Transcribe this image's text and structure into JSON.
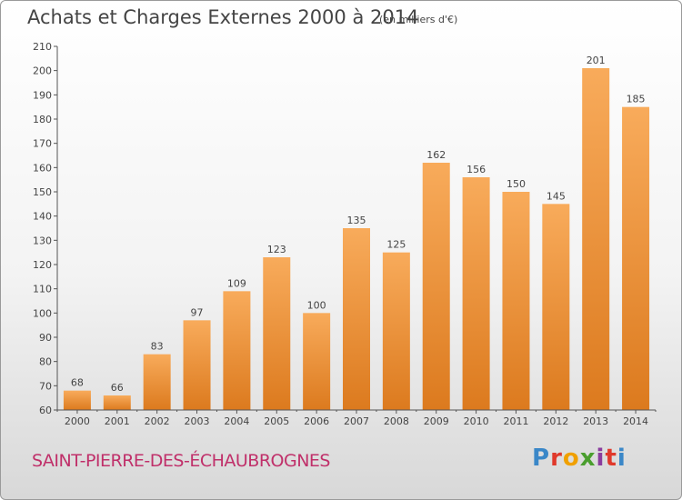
{
  "header": {
    "title": "Achats et Charges Externes 2000 à 2014",
    "unit": "(en milliers d'€)"
  },
  "footer": {
    "commune": "SAINT-PIERRE-DES-ÉCHAUBROGNES",
    "logo_text": "Proxiti",
    "logo_colors": [
      "#3a87c8",
      "#e0392b",
      "#f0a000",
      "#4a9e2e",
      "#8a3c9e",
      "#e0392b",
      "#3a87c8"
    ]
  },
  "colors": {
    "bar_light": "#f8ab5b",
    "bar_dark": "#dc7a1e",
    "axis": "#555555",
    "grid": "#cccccc",
    "commune_text": "#c0306a"
  },
  "chart_data": {
    "type": "bar",
    "title": "Achats et Charges Externes 2000 à 2014",
    "subtitle": "(en milliers d'€)",
    "xlabel": "",
    "ylabel": "",
    "categories": [
      "2000",
      "2001",
      "2002",
      "2003",
      "2004",
      "2005",
      "2006",
      "2007",
      "2008",
      "2009",
      "2010",
      "2011",
      "2012",
      "2013",
      "2014"
    ],
    "values": [
      68,
      66,
      83,
      97,
      109,
      123,
      100,
      135,
      125,
      162,
      156,
      150,
      145,
      201,
      185
    ],
    "ylim": [
      60,
      210
    ],
    "yticks": [
      60,
      70,
      80,
      90,
      100,
      110,
      120,
      130,
      140,
      150,
      160,
      170,
      180,
      190,
      200,
      210
    ],
    "grid": false,
    "data_labels": true
  }
}
